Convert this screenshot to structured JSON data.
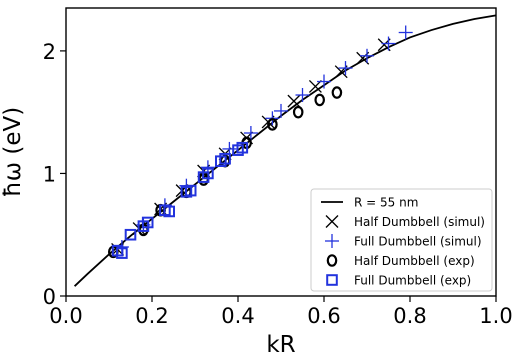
{
  "chart_data": {
    "type": "scatter",
    "xlabel": "kR",
    "ylabel": "ħω (eV)",
    "xlim": [
      0.0,
      1.0
    ],
    "ylim": [
      0.0,
      2.35
    ],
    "xticks": [
      0.0,
      0.2,
      0.4,
      0.6,
      0.8,
      1.0
    ],
    "xtick_labels": [
      "0.0",
      "0.2",
      "0.4",
      "0.6",
      "0.8",
      "1.0"
    ],
    "yticks": [
      0,
      1,
      2
    ],
    "ytick_labels": [
      "0",
      "1",
      "2"
    ],
    "grid": false,
    "legend_position": "bottom-right",
    "series": [
      {
        "name": "R = 55 nm",
        "kind": "line",
        "color": "#000000",
        "x": [
          0.02,
          0.05,
          0.1,
          0.15,
          0.2,
          0.25,
          0.3,
          0.35,
          0.4,
          0.45,
          0.5,
          0.55,
          0.6,
          0.65,
          0.7,
          0.75,
          0.8,
          0.85,
          0.9,
          0.95,
          1.0
        ],
        "y": [
          0.08,
          0.18,
          0.34,
          0.49,
          0.63,
          0.77,
          0.91,
          1.05,
          1.19,
          1.33,
          1.47,
          1.6,
          1.72,
          1.84,
          1.94,
          2.03,
          2.11,
          2.17,
          2.22,
          2.26,
          2.29
        ]
      },
      {
        "name": "Half Dumbbell (simul)",
        "kind": "marker",
        "marker": "x",
        "color": "#000000",
        "x": [
          0.12,
          0.17,
          0.22,
          0.27,
          0.32,
          0.37,
          0.42,
          0.47,
          0.53,
          0.58,
          0.64,
          0.69,
          0.74
        ],
        "y": [
          0.38,
          0.55,
          0.71,
          0.86,
          1.02,
          1.16,
          1.29,
          1.42,
          1.59,
          1.71,
          1.83,
          1.94,
          2.05
        ]
      },
      {
        "name": "Full Dumbbell (simul)",
        "kind": "marker",
        "marker": "+",
        "color": "#2233dd",
        "x": [
          0.13,
          0.18,
          0.23,
          0.28,
          0.33,
          0.38,
          0.43,
          0.48,
          0.5,
          0.55,
          0.6,
          0.65,
          0.7,
          0.75,
          0.79
        ],
        "y": [
          0.4,
          0.58,
          0.74,
          0.9,
          1.05,
          1.2,
          1.33,
          1.45,
          1.51,
          1.64,
          1.75,
          1.86,
          1.96,
          2.06,
          2.15
        ]
      },
      {
        "name": "Half Dumbbell (exp)",
        "kind": "marker",
        "marker": "o",
        "color": "#000000",
        "x": [
          0.11,
          0.18,
          0.22,
          0.28,
          0.32,
          0.37,
          0.42,
          0.48,
          0.54,
          0.59,
          0.63
        ],
        "y": [
          0.36,
          0.54,
          0.7,
          0.85,
          0.95,
          1.1,
          1.25,
          1.4,
          1.5,
          1.6,
          1.66
        ]
      },
      {
        "name": "Full Dumbbell (exp)",
        "kind": "marker",
        "marker": "s",
        "color": "#2233dd",
        "x": [
          0.12,
          0.13,
          0.15,
          0.18,
          0.19,
          0.23,
          0.24,
          0.28,
          0.29,
          0.32,
          0.33,
          0.36,
          0.37,
          0.4,
          0.41
        ],
        "y": [
          0.37,
          0.35,
          0.5,
          0.57,
          0.6,
          0.7,
          0.69,
          0.85,
          0.86,
          0.97,
          1.0,
          1.1,
          1.12,
          1.19,
          1.21
        ]
      }
    ]
  }
}
